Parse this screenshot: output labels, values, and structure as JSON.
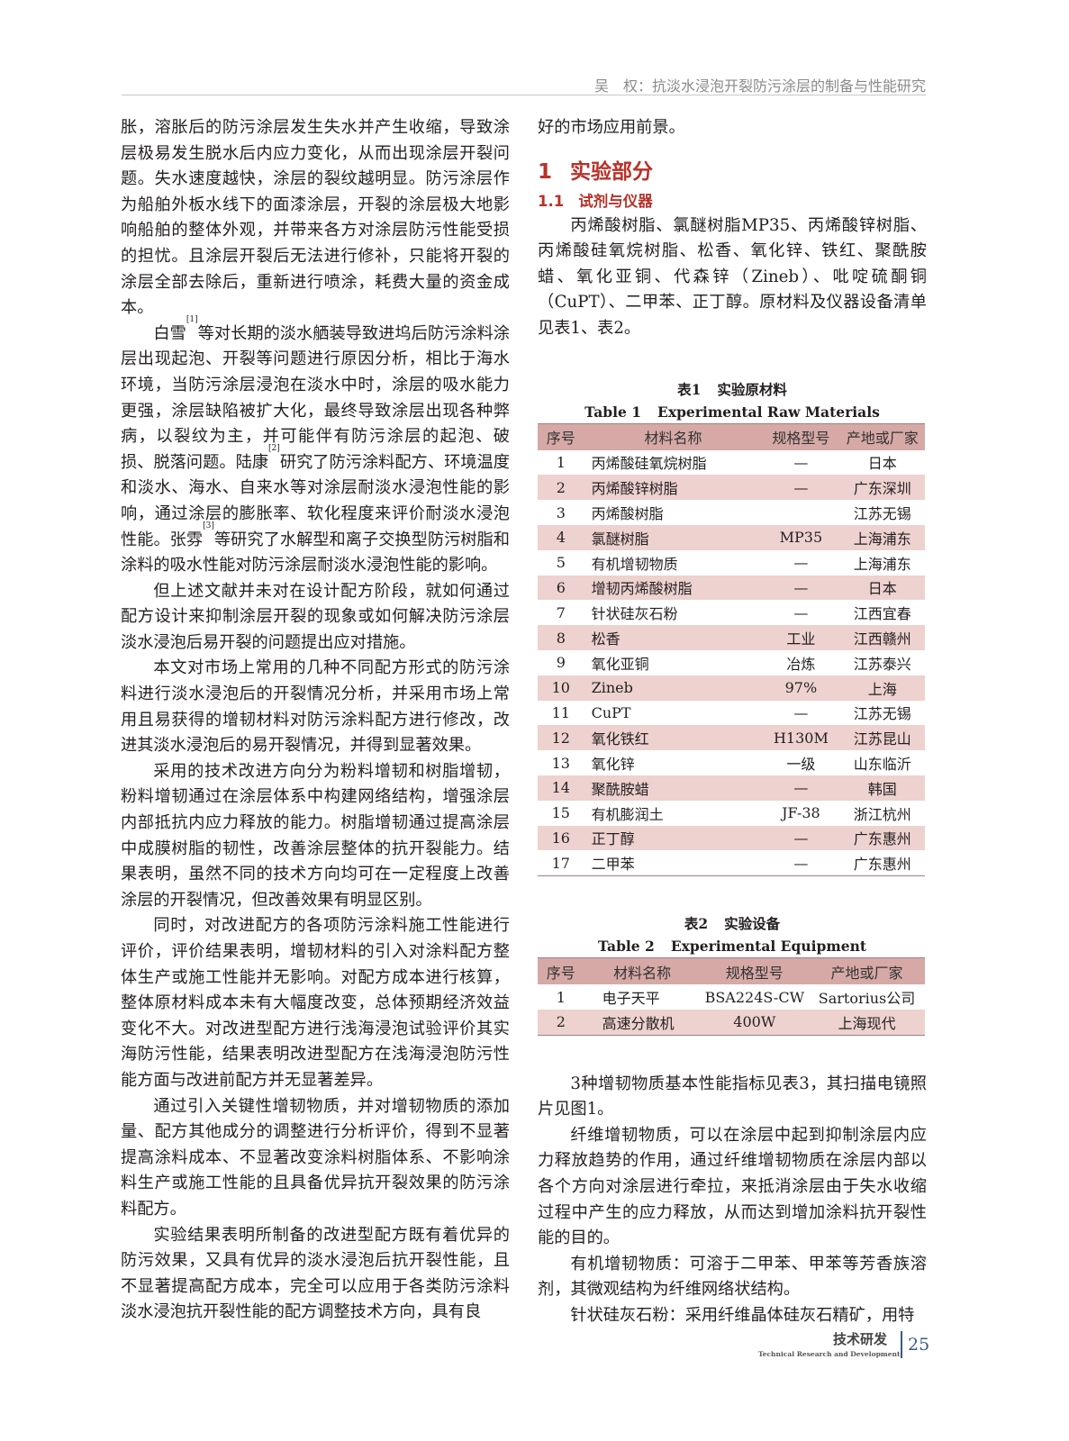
{
  "header": {
    "running_title": "吴　权：抗淡水浸泡开裂防污涂层的制备与性能研究"
  },
  "left_column": {
    "paragraphs": [
      {
        "indent": false,
        "segments": [
          {
            "t": "胀，溶胀后的防污涂层发生失水并产生收缩，导致涂层极易发生脱水后内应力变化，从而出现涂层开裂问题。失水速度越快，涂层的裂纹越明显。防污涂层作为船舶外板水线下的面漆涂层，开裂的涂层极大地影响船舶的整体外观，并带来各方对涂层防污性能受损的担忧。且涂层开裂后无法进行修补，只能将开裂的涂层全部去除后，重新进行喷涂，耗费大量的资金成本。"
          }
        ]
      },
      {
        "indent": true,
        "segments": [
          {
            "t": "白雪"
          },
          {
            "sup": "[1]"
          },
          {
            "t": "等对长期的淡水舾装导致进坞后防污涂料涂层出现起泡、开裂等问题进行原因分析，相比于海水环境，当防污涂层浸泡在淡水中时，涂层的吸水能力更强，涂层缺陷被扩大化，最终导致涂层出现各种弊病，以裂纹为主，并可能伴有防污涂层的起泡、破损、脱落问题。陆康"
          },
          {
            "sup": "[2]"
          },
          {
            "t": "研究了防污涂料配方、环境温度和淡水、海水、自来水等对涂层耐淡水浸泡性能的影响，通过涂层的膨胀率、软化程度来评价耐淡水浸泡性能。张雰"
          },
          {
            "sup": "[3]"
          },
          {
            "t": "等研究了水解型和离子交换型防污树脂和涂料的吸水性能对防污涂层耐淡水浸泡性能的影响。"
          }
        ]
      },
      {
        "indent": true,
        "segments": [
          {
            "t": "但上述文献并未对在设计配方阶段，就如何通过配方设计来抑制涂层开裂的现象或如何解决防污涂层淡水浸泡后易开裂的问题提出应对措施。"
          }
        ]
      },
      {
        "indent": true,
        "segments": [
          {
            "t": "本文对市场上常用的几种不同配方形式的防污涂料进行淡水浸泡后的开裂情况分析，并采用市场上常用且易获得的增韧材料对防污涂料配方进行修改，改进其淡水浸泡后的易开裂情况，并得到显著效果。"
          }
        ]
      },
      {
        "indent": true,
        "segments": [
          {
            "t": "采用的技术改进方向分为粉料增韧和树脂增韧，粉料增韧通过在涂层体系中构建网络结构，增强涂层内部抵抗内应力释放的能力。树脂增韧通过提高涂层中成膜树脂的韧性，改善涂层整体的抗开裂能力。结果表明，虽然不同的技术方向均可在一定程度上改善涂层的开裂情况，但改善效果有明显区别。"
          }
        ]
      },
      {
        "indent": true,
        "segments": [
          {
            "t": "同时，对改进配方的各项防污涂料施工性能进行评价，评价结果表明，增韧材料的引入对涂料配方整体生产或施工性能并无影响。对配方成本进行核算，整体原材料成本未有大幅度改变，总体预期经济效益变化不大。对改进型配方进行浅海浸泡试验评价其实海防污性能，结果表明改进型配方在浅海浸泡防污性能方面与改进前配方并无显著差异。"
          }
        ]
      },
      {
        "indent": true,
        "segments": [
          {
            "t": "通过引入关键性增韧物质，并对增韧物质的添加量、配方其他成分的调整进行分析评价，得到不显著提高涂料成本、不显著改变涂料树脂体系、不影响涂料生产或施工性能的且具备优异抗开裂效果的防污涂料配方。"
          }
        ]
      },
      {
        "indent": true,
        "segments": [
          {
            "t": "实验结果表明所制备的改进型配方既有着优异的防污效果，又具有优异的淡水浸泡后抗开裂性能，且不显著提高配方成本，完全可以应用于各类防污涂料淡水浸泡抗开裂性能的配方调整技术方向，具有良"
          }
        ]
      }
    ]
  },
  "right_column": {
    "continuation": "好的市场应用前景。",
    "section": {
      "number": "1",
      "title": "实验部分"
    },
    "subsection": {
      "number": "1.1",
      "title": "试剂与仪器"
    },
    "intro": "丙烯酸树脂、氯醚树脂MP35、丙烯酸锌树脂、丙烯酸硅氧烷树脂、松香、氧化锌、铁红、聚酰胺蜡、氧化亚铜、代森锌（Zineb）、吡啶硫酮铜（CuPT）、二甲苯、正丁醇。原材料及仪器设备清单见表1、表2。",
    "table1": {
      "caption_cn_label": "表1",
      "caption_cn": "实验原材料",
      "caption_en_label": "Table 1",
      "caption_en": "Experimental Raw Materials",
      "headers": [
        "序号",
        "材料名称",
        "规格型号",
        "产地或厂家"
      ],
      "rows": [
        [
          "1",
          "丙烯酸硅氧烷树脂",
          "—",
          "日本"
        ],
        [
          "2",
          "丙烯酸锌树脂",
          "—",
          "广东深圳"
        ],
        [
          "3",
          "丙烯酸树脂",
          "",
          "江苏无锡"
        ],
        [
          "4",
          "氯醚树脂",
          "MP35",
          "上海浦东"
        ],
        [
          "5",
          "有机增韧物质",
          "—",
          "上海浦东"
        ],
        [
          "6",
          "增韧丙烯酸树脂",
          "—",
          "日本"
        ],
        [
          "7",
          "针状硅灰石粉",
          "—",
          "江西宜春"
        ],
        [
          "8",
          "松香",
          "工业",
          "江西赣州"
        ],
        [
          "9",
          "氧化亚铜",
          "冶炼",
          "江苏泰兴"
        ],
        [
          "10",
          "Zineb",
          "97%",
          "上海"
        ],
        [
          "11",
          "CuPT",
          "—",
          "江苏无锡"
        ],
        [
          "12",
          "氧化铁红",
          "H130M",
          "江苏昆山"
        ],
        [
          "13",
          "氧化锌",
          "一级",
          "山东临沂"
        ],
        [
          "14",
          "聚酰胺蜡",
          "—",
          "韩国"
        ],
        [
          "15",
          "有机膨润土",
          "JF-38",
          "浙江杭州"
        ],
        [
          "16",
          "正丁醇",
          "—",
          "广东惠州"
        ],
        [
          "17",
          "二甲苯",
          "—",
          "广东惠州"
        ]
      ]
    },
    "table2": {
      "caption_cn_label": "表2",
      "caption_cn": "实验设备",
      "caption_en_label": "Table 2",
      "caption_en": "Experimental Equipment",
      "headers": [
        "序号",
        "材料名称",
        "规格型号",
        "产地或厂家"
      ],
      "rows": [
        [
          "1",
          "电子天平",
          "BSA224S-CW",
          "Sartorius公司"
        ],
        [
          "2",
          "高速分散机",
          "400W",
          "上海现代"
        ]
      ]
    },
    "paragraphs": [
      "3种增韧物质基本性能指标见表3，其扫描电镜照片见图1。",
      "纤维增韧物质，可以在涂层中起到抑制涂层内应力释放趋势的作用，通过纤维增韧物质在涂层内部以各个方向对涂层进行牵拉，来抵消涂层由于失水收缩过程中产生的应力释放，从而达到增加涂料抗开裂性能的目的。",
      "有机增韧物质：可溶于二甲苯、甲苯等芳香族溶剂，其微观结构为纤维网络状结构。",
      "针状硅灰石粉：采用纤维晶体硅灰石精矿，用特"
    ]
  },
  "footer": {
    "section_title": "技术研发",
    "section_title_en": "Technical Research and Development",
    "page_number": "25"
  },
  "colors": {
    "accent_red": "#b8322a",
    "table_header": "#d6a9a6",
    "table_stripe": "#edd2cf",
    "page_number": "#3a5a8a"
  }
}
